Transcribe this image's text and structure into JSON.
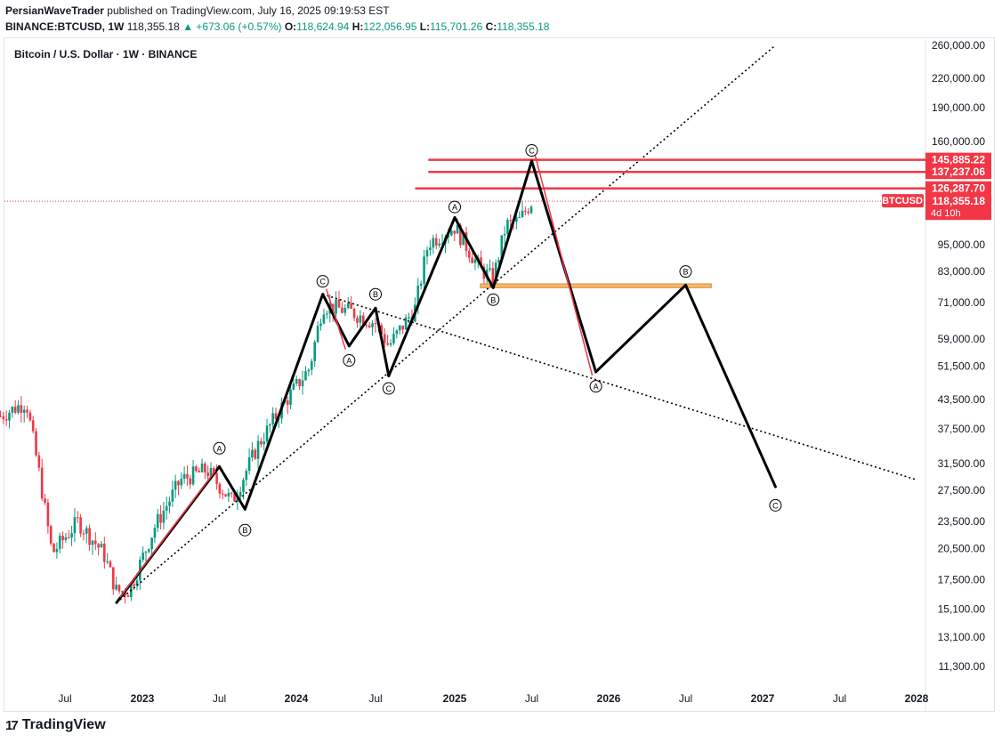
{
  "header": {
    "author": "PersianWaveTrader",
    "published": "published on TradingView.com, July 16, 2025 09:19:53 EST",
    "symbol_line": "BINANCE:BTCUSD, 1W",
    "price": "118,355.18",
    "change": "▲ +673.06 (+0.57%)",
    "o_label": "O:",
    "o_value": "118,624.94",
    "h_label": "H:",
    "h_value": "122,056.95",
    "l_label": "L:",
    "l_value": "115,701.26",
    "c_label": "C:",
    "c_value": "118,355.18"
  },
  "legend_title": "Bitcoin / U.S. Dollar · 1W · BINANCE",
  "footer_brand": "TradingView",
  "colors": {
    "up": "#089981",
    "down": "#f23645",
    "level": "#f23645",
    "zone": "#f5b870",
    "wave": "#000000",
    "wave_red": "#f23645"
  },
  "chart_data": {
    "type": "candlestick",
    "y_scale": "log",
    "x_tick_labels": [
      "Jul",
      "2023",
      "Jul",
      "2024",
      "Jul",
      "2025",
      "Jul",
      "2026",
      "Jul",
      "2027",
      "Jul",
      "2028"
    ],
    "x_tick_dates": [
      "2022-07",
      "2023-01",
      "2023-07",
      "2024-01",
      "2024-07",
      "2025-01",
      "2025-07",
      "2026-01",
      "2026-07",
      "2027-01",
      "2027-07",
      "2028-01"
    ],
    "y_tick_labels": [
      "260,000.00",
      "220,000.00",
      "190,000.00",
      "160,000.00",
      "95,000.00",
      "83,000.00",
      "71,000.00",
      "59,000.00",
      "51,500.00",
      "43,500.00",
      "37,500.00",
      "31,500.00",
      "27,500.00",
      "23,500.00",
      "20,500.00",
      "17,500.00",
      "15,100.00",
      "13,100.00",
      "11,300.00"
    ],
    "y_tick_values": [
      260000,
      220000,
      190000,
      160000,
      95000,
      83000,
      71000,
      59000,
      51500,
      43500,
      37500,
      31500,
      27500,
      23500,
      20500,
      17500,
      15100,
      13100,
      11300
    ],
    "price_levels": [
      {
        "label": "145,885.22",
        "value": 145885.22,
        "start": "2024-11"
      },
      {
        "label": "137,237.06",
        "value": 137237.06,
        "start": "2024-11"
      },
      {
        "label": "126,287.70",
        "value": 126287.7,
        "start": "2024-10"
      }
    ],
    "current_price": {
      "symbol": "BTCUSD",
      "label": "118,355.18",
      "countdown": "4d 10h",
      "value": 118355.18
    },
    "support_zone": {
      "from": "2025-03",
      "to": "2026-09",
      "low": 76500,
      "high": 78000
    },
    "price_series_approx": [
      {
        "date": "2022-02",
        "close": 40000
      },
      {
        "date": "2022-04",
        "close": 43000
      },
      {
        "date": "2022-05",
        "close": 30000
      },
      {
        "date": "2022-06",
        "close": 20000
      },
      {
        "date": "2022-08",
        "close": 23500
      },
      {
        "date": "2022-10",
        "close": 20000
      },
      {
        "date": "2022-11",
        "close": 16500
      },
      {
        "date": "2022-12",
        "close": 16600
      },
      {
        "date": "2023-02",
        "close": 23000
      },
      {
        "date": "2023-04",
        "close": 29000
      },
      {
        "date": "2023-06",
        "close": 30500
      },
      {
        "date": "2023-08",
        "close": 26000
      },
      {
        "date": "2023-10",
        "close": 34500
      },
      {
        "date": "2023-12",
        "close": 42500
      },
      {
        "date": "2024-02",
        "close": 51000
      },
      {
        "date": "2024-03",
        "close": 70000
      },
      {
        "date": "2024-05",
        "close": 68000
      },
      {
        "date": "2024-07",
        "close": 64000
      },
      {
        "date": "2024-08",
        "close": 57000
      },
      {
        "date": "2024-10",
        "close": 69000
      },
      {
        "date": "2024-11",
        "close": 96000
      },
      {
        "date": "2025-01",
        "close": 104000
      },
      {
        "date": "2025-03",
        "close": 84000
      },
      {
        "date": "2025-04",
        "close": 80000
      },
      {
        "date": "2025-05",
        "close": 105000
      },
      {
        "date": "2025-06",
        "close": 107000
      },
      {
        "date": "2025-07",
        "close": 118355
      }
    ],
    "wave_path": [
      {
        "date": "2022-11",
        "value": 15600
      },
      {
        "date": "2023-07",
        "value": 31000
      },
      {
        "date": "2023-09",
        "value": 25000
      },
      {
        "date": "2024-03",
        "value": 74000
      },
      {
        "date": "2024-05",
        "value": 57000
      },
      {
        "date": "2024-07",
        "value": 69000
      },
      {
        "date": "2024-08",
        "value": 49000
      },
      {
        "date": "2025-01",
        "value": 109000
      },
      {
        "date": "2025-04",
        "value": 76500
      },
      {
        "date": "2025-07",
        "value": 145000
      },
      {
        "date": "2025-12",
        "value": 50000
      },
      {
        "date": "2026-07",
        "value": 77500
      },
      {
        "date": "2027-02",
        "value": 28000
      }
    ],
    "wave_labels": [
      {
        "text": "Ⓐ",
        "date": "2023-07",
        "value": 34000
      },
      {
        "text": "Ⓑ",
        "date": "2023-09",
        "value": 22500
      },
      {
        "text": "Ⓒ",
        "date": "2024-03",
        "value": 79000
      },
      {
        "text": "Ⓐ",
        "date": "2024-05",
        "value": 53000
      },
      {
        "text": "Ⓑ",
        "date": "2024-07",
        "value": 74000
      },
      {
        "text": "Ⓒ",
        "date": "2024-08",
        "value": 46000
      },
      {
        "text": "Ⓐ",
        "date": "2025-01",
        "value": 115000
      },
      {
        "text": "Ⓑ",
        "date": "2025-04",
        "value": 72000
      },
      {
        "text": "Ⓒ",
        "date": "2025-07",
        "value": 153000
      },
      {
        "text": "Ⓐ",
        "date": "2025-12",
        "value": 46500
      },
      {
        "text": "Ⓑ",
        "date": "2026-07",
        "value": 83000
      },
      {
        "text": "Ⓒ",
        "date": "2027-02",
        "value": 25500
      }
    ],
    "trend_lines": [
      {
        "from": {
          "date": "2022-11",
          "value": 15600
        },
        "to": {
          "date": "2027-02",
          "value": 260000
        }
      },
      {
        "from": {
          "date": "2024-03",
          "value": 74000
        },
        "to": {
          "date": "2028-01",
          "value": 29000
        }
      }
    ]
  }
}
